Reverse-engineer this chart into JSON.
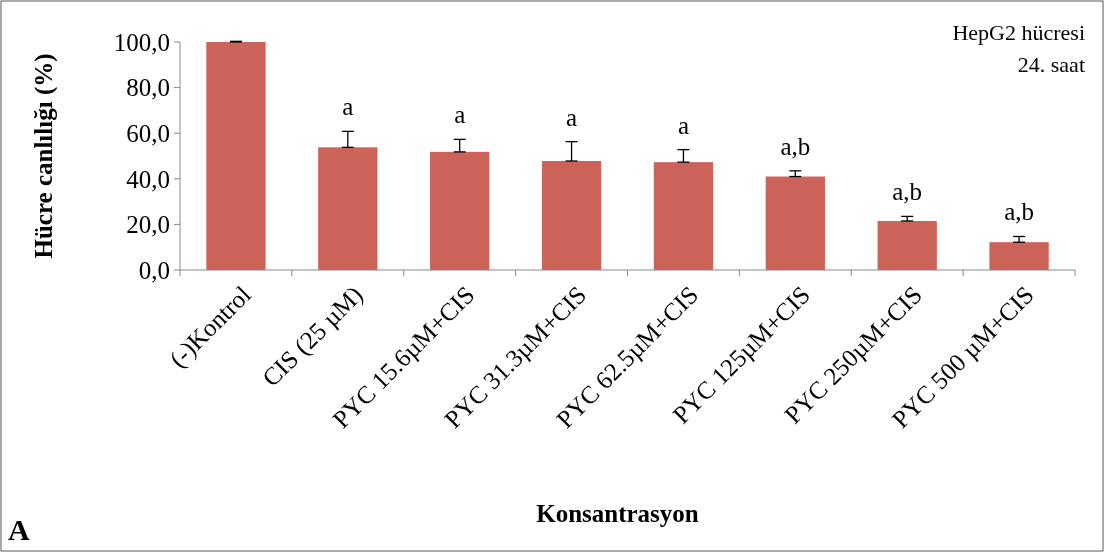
{
  "chart_data": {
    "type": "bar",
    "xlabel": "Konsantrasyon",
    "ylabel": "Hücre canlılığı (%)",
    "categories": [
      "(-)Kontrol",
      "CIS (25 µM)",
      "PYC 15.6µM+CIS",
      "PYC 31.3µM+CIS",
      "PYC 62.5µM+CIS",
      "PYC 125µM+CIS",
      "PYC 250µM+CIS",
      "PYC 500 µM+CIS"
    ],
    "values": [
      100,
      53.8,
      51.8,
      47.8,
      47.3,
      41.0,
      21.5,
      12.2
    ],
    "errors": [
      [
        100,
        100.3
      ],
      [
        53.8,
        60.8
      ],
      [
        51.8,
        57.3
      ],
      [
        47.8,
        56.3
      ],
      [
        47.3,
        52.8
      ],
      [
        41.0,
        43.5
      ],
      [
        21.5,
        23.5
      ],
      [
        12.2,
        14.7
      ]
    ],
    "color": "#cb6359",
    "ylim": [
      0,
      100
    ],
    "yticks": [
      {
        "value": 0,
        "label": "0,0"
      },
      {
        "value": 20,
        "label": "20,0"
      },
      {
        "value": 40,
        "label": "40,0"
      },
      {
        "value": 60,
        "label": "60,0"
      },
      {
        "value": 80,
        "label": "80,0"
      },
      {
        "value": 100,
        "label": "100,0"
      }
    ],
    "grid": false,
    "value_labels": [
      null,
      "a",
      "a",
      "a",
      "a",
      "a,b",
      "a,b",
      "a,b"
    ],
    "annotations": [
      "HepG2 hücresi",
      "24. saat",
      "A"
    ]
  }
}
